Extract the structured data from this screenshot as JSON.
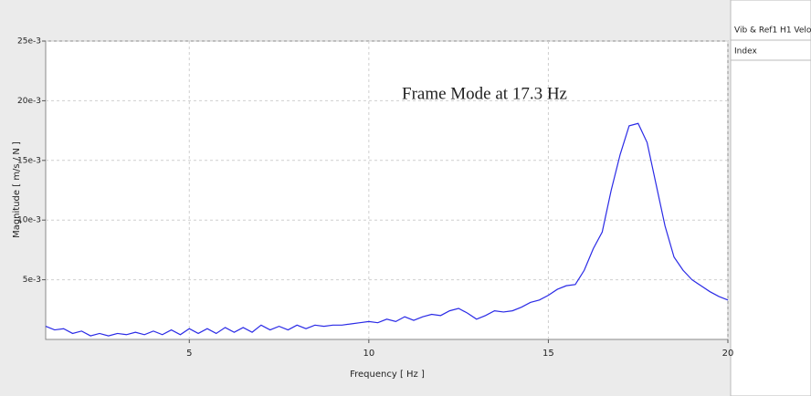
{
  "chart_data": {
    "type": "line",
    "annotation": "Frame Mode at 17.3 Hz",
    "xlabel": "Frequency [ Hz ]",
    "ylabel": "Magnitude [ m/s / N ]",
    "x": [
      1.0,
      1.25,
      1.5,
      1.75,
      2.0,
      2.25,
      2.5,
      2.75,
      3.0,
      3.25,
      3.5,
      3.75,
      4.0,
      4.25,
      4.5,
      4.75,
      5.0,
      5.25,
      5.5,
      5.75,
      6.0,
      6.25,
      6.5,
      6.75,
      7.0,
      7.25,
      7.5,
      7.75,
      8.0,
      8.25,
      8.5,
      8.75,
      9.0,
      9.25,
      9.5,
      9.75,
      10.0,
      10.25,
      10.5,
      10.75,
      11.0,
      11.25,
      11.5,
      11.75,
      12.0,
      12.25,
      12.5,
      12.75,
      13.0,
      13.25,
      13.5,
      13.75,
      14.0,
      14.25,
      14.5,
      14.75,
      15.0,
      15.25,
      15.5,
      15.75,
      16.0,
      16.25,
      16.5,
      16.75,
      17.0,
      17.25,
      17.5,
      17.75,
      18.0,
      18.25,
      18.5,
      18.75,
      19.0,
      19.25,
      19.5,
      19.75,
      20.0
    ],
    "series": [
      {
        "color": "#2a2ae6",
        "values": [
          0.0011,
          0.0008,
          0.0009,
          0.0005,
          0.0007,
          0.0003,
          0.0005,
          0.0003,
          0.0005,
          0.0004,
          0.0006,
          0.0004,
          0.0007,
          0.0004,
          0.0008,
          0.0004,
          0.0009,
          0.0005,
          0.0009,
          0.0005,
          0.001,
          0.0006,
          0.001,
          0.0006,
          0.0012,
          0.0008,
          0.0011,
          0.0008,
          0.0012,
          0.0009,
          0.0012,
          0.0011,
          0.0012,
          0.0012,
          0.0013,
          0.0014,
          0.0015,
          0.0014,
          0.0017,
          0.0015,
          0.0019,
          0.0016,
          0.0019,
          0.0021,
          0.002,
          0.0024,
          0.0026,
          0.0022,
          0.0017,
          0.002,
          0.0024,
          0.0023,
          0.0024,
          0.0027,
          0.0031,
          0.0033,
          0.0037,
          0.0042,
          0.0045,
          0.0046,
          0.0058,
          0.0076,
          0.009,
          0.0125,
          0.0155,
          0.0179,
          0.0181,
          0.0165,
          0.013,
          0.0095,
          0.0069,
          0.0058,
          0.005,
          0.0045,
          0.004,
          0.0036,
          0.0033
        ]
      }
    ],
    "xlim": [
      1,
      20
    ],
    "xticks": [
      5,
      10,
      15,
      20
    ],
    "ylim": [
      0,
      0.025
    ],
    "yticks": [
      {
        "value": 0.005,
        "label": "5e-3"
      },
      {
        "value": 0.01,
        "label": "10e-3"
      },
      {
        "value": 0.015,
        "label": "15e-3"
      },
      {
        "value": 0.02,
        "label": "20e-3"
      },
      {
        "value": 0.025,
        "label": "25e-3"
      }
    ],
    "grid": true
  },
  "side_panel": {
    "title": "Vib & Ref1 H1 Veloc.",
    "column": "Index"
  }
}
